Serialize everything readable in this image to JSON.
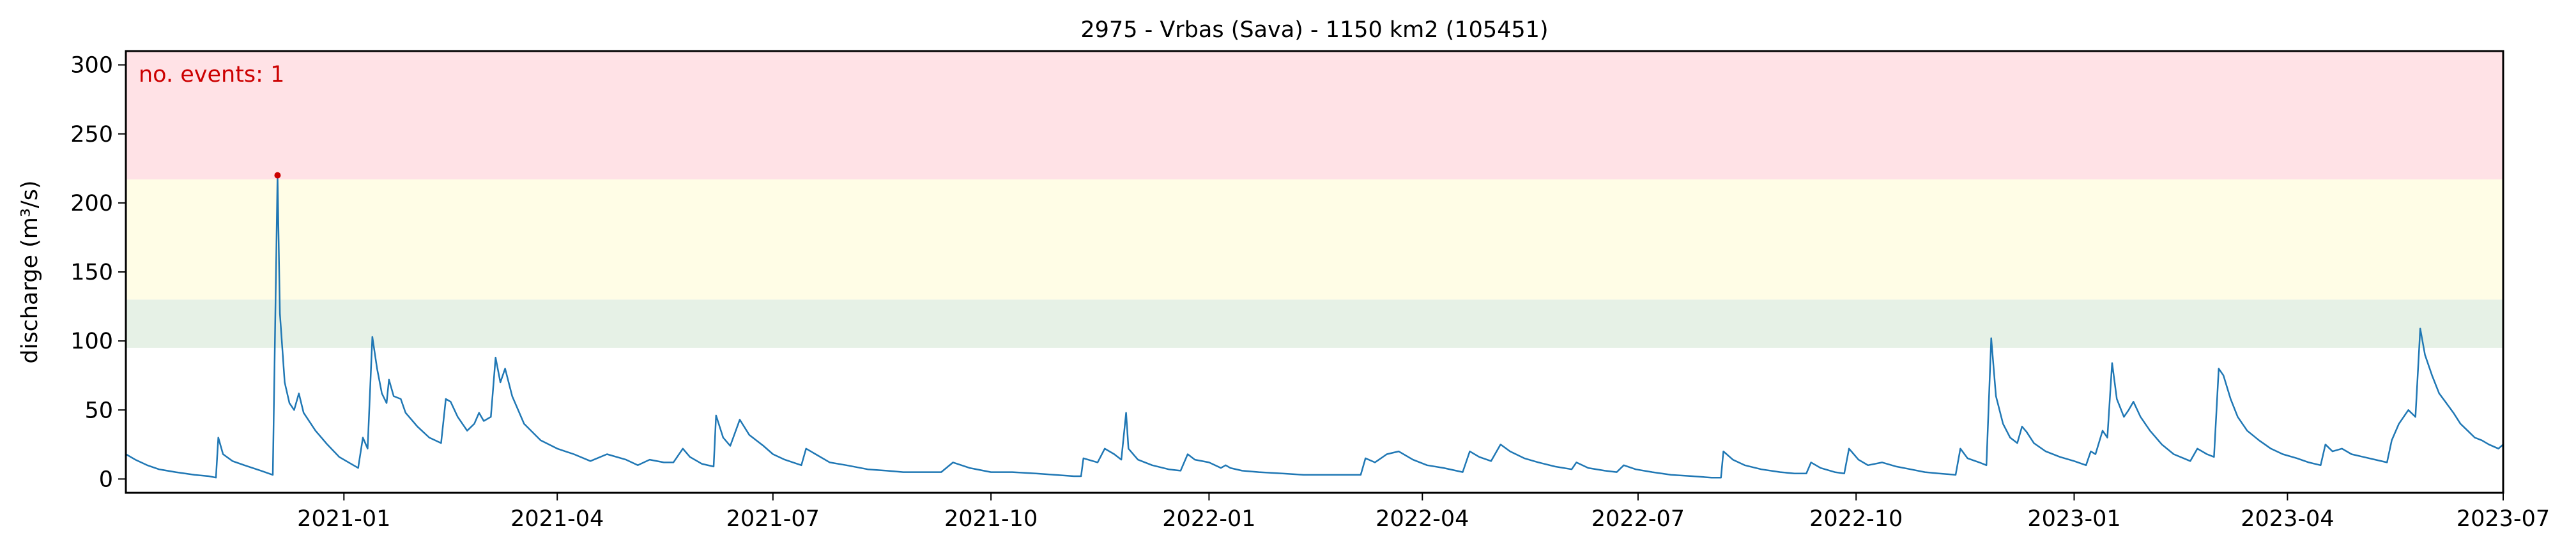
{
  "chart_data": {
    "type": "line",
    "title": "2975 - Vrbas (Sava) - 1150 km2 (105451)",
    "ylabel": "discharge (m³/s)",
    "xlabel": "",
    "xlim": [
      "2020-10-01",
      "2023-07-01"
    ],
    "ylim": [
      -10,
      310
    ],
    "grid": false,
    "x_ticks": [
      {
        "date": "2021-01-01",
        "label": "2021-01"
      },
      {
        "date": "2021-04-01",
        "label": "2021-04"
      },
      {
        "date": "2021-07-01",
        "label": "2021-07"
      },
      {
        "date": "2021-10-01",
        "label": "2021-10"
      },
      {
        "date": "2022-01-01",
        "label": "2022-01"
      },
      {
        "date": "2022-04-01",
        "label": "2022-04"
      },
      {
        "date": "2022-07-01",
        "label": "2022-07"
      },
      {
        "date": "2022-10-01",
        "label": "2022-10"
      },
      {
        "date": "2023-01-01",
        "label": "2023-01"
      },
      {
        "date": "2023-04-01",
        "label": "2023-04"
      },
      {
        "date": "2023-07-01",
        "label": "2023-07"
      }
    ],
    "y_ticks": [
      {
        "value": 0,
        "label": "0"
      },
      {
        "value": 50,
        "label": "50"
      },
      {
        "value": 100,
        "label": "100"
      },
      {
        "value": 150,
        "label": "150"
      },
      {
        "value": 200,
        "label": "200"
      },
      {
        "value": 250,
        "label": "250"
      },
      {
        "value": 300,
        "label": "300"
      }
    ],
    "threshold_bands": [
      {
        "from": 95,
        "to": 130,
        "color": "#e6f1e6"
      },
      {
        "from": 130,
        "to": 217,
        "color": "#fffde6"
      },
      {
        "from": 217,
        "to": 310,
        "color": "#ffe2e6"
      }
    ],
    "annotation": {
      "text": "no. events: 1",
      "color": "#cc0000"
    },
    "series": [
      {
        "color": "#1f77b4",
        "points": [
          [
            "2020-10-01",
            18
          ],
          [
            "2020-10-05",
            14
          ],
          [
            "2020-10-10",
            10
          ],
          [
            "2020-10-15",
            7
          ],
          [
            "2020-10-22",
            5
          ],
          [
            "2020-10-30",
            3
          ],
          [
            "2020-11-05",
            2
          ],
          [
            "2020-11-08",
            1
          ],
          [
            "2020-11-09",
            30
          ],
          [
            "2020-11-11",
            18
          ],
          [
            "2020-11-15",
            13
          ],
          [
            "2020-11-20",
            10
          ],
          [
            "2020-11-27",
            6
          ],
          [
            "2020-12-02",
            3
          ],
          [
            "2020-12-04",
            220
          ],
          [
            "2020-12-05",
            120
          ],
          [
            "2020-12-07",
            70
          ],
          [
            "2020-12-09",
            55
          ],
          [
            "2020-12-11",
            50
          ],
          [
            "2020-12-13",
            62
          ],
          [
            "2020-12-15",
            48
          ],
          [
            "2020-12-20",
            35
          ],
          [
            "2020-12-25",
            25
          ],
          [
            "2020-12-30",
            16
          ],
          [
            "2021-01-03",
            12
          ],
          [
            "2021-01-07",
            8
          ],
          [
            "2021-01-09",
            30
          ],
          [
            "2021-01-11",
            22
          ],
          [
            "2021-01-13",
            103
          ],
          [
            "2021-01-15",
            80
          ],
          [
            "2021-01-17",
            62
          ],
          [
            "2021-01-19",
            55
          ],
          [
            "2021-01-20",
            72
          ],
          [
            "2021-01-22",
            60
          ],
          [
            "2021-01-25",
            58
          ],
          [
            "2021-01-27",
            48
          ],
          [
            "2021-02-01",
            38
          ],
          [
            "2021-02-06",
            30
          ],
          [
            "2021-02-11",
            26
          ],
          [
            "2021-02-13",
            58
          ],
          [
            "2021-02-15",
            56
          ],
          [
            "2021-02-18",
            45
          ],
          [
            "2021-02-22",
            35
          ],
          [
            "2021-02-25",
            40
          ],
          [
            "2021-02-27",
            48
          ],
          [
            "2021-03-01",
            42
          ],
          [
            "2021-03-04",
            45
          ],
          [
            "2021-03-06",
            88
          ],
          [
            "2021-03-08",
            70
          ],
          [
            "2021-03-10",
            80
          ],
          [
            "2021-03-13",
            60
          ],
          [
            "2021-03-18",
            40
          ],
          [
            "2021-03-25",
            28
          ],
          [
            "2021-04-01",
            22
          ],
          [
            "2021-04-08",
            18
          ],
          [
            "2021-04-15",
            13
          ],
          [
            "2021-04-22",
            18
          ],
          [
            "2021-04-30",
            14
          ],
          [
            "2021-05-05",
            10
          ],
          [
            "2021-05-10",
            14
          ],
          [
            "2021-05-16",
            12
          ],
          [
            "2021-05-20",
            12
          ],
          [
            "2021-05-24",
            22
          ],
          [
            "2021-05-27",
            16
          ],
          [
            "2021-06-01",
            11
          ],
          [
            "2021-06-06",
            9
          ],
          [
            "2021-06-07",
            46
          ],
          [
            "2021-06-10",
            30
          ],
          [
            "2021-06-13",
            24
          ],
          [
            "2021-06-17",
            43
          ],
          [
            "2021-06-21",
            32
          ],
          [
            "2021-06-27",
            24
          ],
          [
            "2021-07-01",
            18
          ],
          [
            "2021-07-06",
            14
          ],
          [
            "2021-07-13",
            10
          ],
          [
            "2021-07-15",
            22
          ],
          [
            "2021-07-19",
            18
          ],
          [
            "2021-07-25",
            12
          ],
          [
            "2021-08-01",
            10
          ],
          [
            "2021-08-10",
            7
          ],
          [
            "2021-08-18",
            6
          ],
          [
            "2021-08-25",
            5
          ],
          [
            "2021-09-01",
            5
          ],
          [
            "2021-09-10",
            5
          ],
          [
            "2021-09-15",
            12
          ],
          [
            "2021-09-22",
            8
          ],
          [
            "2021-10-01",
            5
          ],
          [
            "2021-10-10",
            5
          ],
          [
            "2021-10-20",
            4
          ],
          [
            "2021-10-28",
            3
          ],
          [
            "2021-11-05",
            2
          ],
          [
            "2021-11-08",
            2
          ],
          [
            "2021-11-09",
            15
          ],
          [
            "2021-11-15",
            12
          ],
          [
            "2021-11-18",
            22
          ],
          [
            "2021-11-22",
            18
          ],
          [
            "2021-11-25",
            14
          ],
          [
            "2021-11-27",
            48
          ],
          [
            "2021-11-28",
            22
          ],
          [
            "2021-12-02",
            14
          ],
          [
            "2021-12-08",
            10
          ],
          [
            "2021-12-15",
            7
          ],
          [
            "2021-12-20",
            6
          ],
          [
            "2021-12-23",
            18
          ],
          [
            "2021-12-26",
            14
          ],
          [
            "2022-01-01",
            12
          ],
          [
            "2022-01-06",
            8
          ],
          [
            "2022-01-08",
            10
          ],
          [
            "2022-01-10",
            8
          ],
          [
            "2022-01-15",
            6
          ],
          [
            "2022-01-22",
            5
          ],
          [
            "2022-02-01",
            4
          ],
          [
            "2022-02-10",
            3
          ],
          [
            "2022-02-20",
            3
          ],
          [
            "2022-03-01",
            3
          ],
          [
            "2022-03-06",
            3
          ],
          [
            "2022-03-08",
            15
          ],
          [
            "2022-03-12",
            12
          ],
          [
            "2022-03-17",
            18
          ],
          [
            "2022-03-22",
            20
          ],
          [
            "2022-03-28",
            14
          ],
          [
            "2022-04-03",
            10
          ],
          [
            "2022-04-10",
            8
          ],
          [
            "2022-04-18",
            5
          ],
          [
            "2022-04-21",
            20
          ],
          [
            "2022-04-25",
            16
          ],
          [
            "2022-04-30",
            13
          ],
          [
            "2022-05-04",
            25
          ],
          [
            "2022-05-08",
            20
          ],
          [
            "2022-05-14",
            15
          ],
          [
            "2022-05-20",
            12
          ],
          [
            "2022-05-27",
            9
          ],
          [
            "2022-06-03",
            7
          ],
          [
            "2022-06-05",
            12
          ],
          [
            "2022-06-10",
            8
          ],
          [
            "2022-06-17",
            6
          ],
          [
            "2022-06-22",
            5
          ],
          [
            "2022-06-25",
            10
          ],
          [
            "2022-06-30",
            7
          ],
          [
            "2022-07-07",
            5
          ],
          [
            "2022-07-15",
            3
          ],
          [
            "2022-07-24",
            2
          ],
          [
            "2022-08-01",
            1
          ],
          [
            "2022-08-05",
            1
          ],
          [
            "2022-08-06",
            20
          ],
          [
            "2022-08-10",
            14
          ],
          [
            "2022-08-15",
            10
          ],
          [
            "2022-08-22",
            7
          ],
          [
            "2022-08-30",
            5
          ],
          [
            "2022-09-05",
            4
          ],
          [
            "2022-09-10",
            4
          ],
          [
            "2022-09-12",
            12
          ],
          [
            "2022-09-16",
            8
          ],
          [
            "2022-09-22",
            5
          ],
          [
            "2022-09-26",
            4
          ],
          [
            "2022-09-28",
            22
          ],
          [
            "2022-10-02",
            14
          ],
          [
            "2022-10-06",
            10
          ],
          [
            "2022-10-12",
            12
          ],
          [
            "2022-10-18",
            9
          ],
          [
            "2022-10-24",
            7
          ],
          [
            "2022-10-30",
            5
          ],
          [
            "2022-11-05",
            4
          ],
          [
            "2022-11-12",
            3
          ],
          [
            "2022-11-14",
            22
          ],
          [
            "2022-11-17",
            15
          ],
          [
            "2022-11-22",
            12
          ],
          [
            "2022-11-25",
            10
          ],
          [
            "2022-11-27",
            102
          ],
          [
            "2022-11-29",
            60
          ],
          [
            "2022-12-02",
            40
          ],
          [
            "2022-12-05",
            30
          ],
          [
            "2022-12-08",
            26
          ],
          [
            "2022-12-10",
            38
          ],
          [
            "2022-12-12",
            34
          ],
          [
            "2022-12-15",
            26
          ],
          [
            "2022-12-20",
            20
          ],
          [
            "2022-12-26",
            16
          ],
          [
            "2023-01-01",
            13
          ],
          [
            "2023-01-06",
            10
          ],
          [
            "2023-01-08",
            20
          ],
          [
            "2023-01-10",
            18
          ],
          [
            "2023-01-13",
            35
          ],
          [
            "2023-01-15",
            30
          ],
          [
            "2023-01-17",
            84
          ],
          [
            "2023-01-19",
            58
          ],
          [
            "2023-01-22",
            45
          ],
          [
            "2023-01-24",
            50
          ],
          [
            "2023-01-26",
            56
          ],
          [
            "2023-01-29",
            45
          ],
          [
            "2023-02-02",
            35
          ],
          [
            "2023-02-07",
            25
          ],
          [
            "2023-02-12",
            18
          ],
          [
            "2023-02-19",
            13
          ],
          [
            "2023-02-22",
            22
          ],
          [
            "2023-02-26",
            18
          ],
          [
            "2023-03-01",
            16
          ],
          [
            "2023-03-03",
            80
          ],
          [
            "2023-03-05",
            75
          ],
          [
            "2023-03-08",
            58
          ],
          [
            "2023-03-11",
            45
          ],
          [
            "2023-03-15",
            35
          ],
          [
            "2023-03-20",
            28
          ],
          [
            "2023-03-25",
            22
          ],
          [
            "2023-03-30",
            18
          ],
          [
            "2023-04-05",
            15
          ],
          [
            "2023-04-10",
            12
          ],
          [
            "2023-04-15",
            10
          ],
          [
            "2023-04-17",
            25
          ],
          [
            "2023-04-20",
            20
          ],
          [
            "2023-04-24",
            22
          ],
          [
            "2023-04-28",
            18
          ],
          [
            "2023-05-03",
            16
          ],
          [
            "2023-05-08",
            14
          ],
          [
            "2023-05-13",
            12
          ],
          [
            "2023-05-15",
            28
          ],
          [
            "2023-05-18",
            40
          ],
          [
            "2023-05-22",
            50
          ],
          [
            "2023-05-25",
            45
          ],
          [
            "2023-05-27",
            109
          ],
          [
            "2023-05-29",
            90
          ],
          [
            "2023-06-01",
            75
          ],
          [
            "2023-06-04",
            62
          ],
          [
            "2023-06-07",
            55
          ],
          [
            "2023-06-10",
            48
          ],
          [
            "2023-06-13",
            40
          ],
          [
            "2023-06-16",
            35
          ],
          [
            "2023-06-19",
            30
          ],
          [
            "2023-06-22",
            28
          ],
          [
            "2023-06-25",
            25
          ],
          [
            "2023-06-29",
            22
          ],
          [
            "2023-07-01",
            25
          ]
        ]
      }
    ],
    "event_markers": [
      {
        "date": "2020-12-04",
        "value": 220,
        "color": "#cc0000"
      }
    ]
  }
}
